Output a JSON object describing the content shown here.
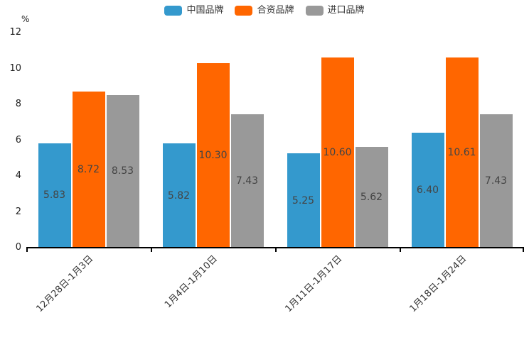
{
  "chart_data": {
    "type": "bar",
    "title": "",
    "unit_label": "%",
    "categories": [
      "12月28日-1月3日",
      "1月4日-1月10日",
      "1月11日-1月17日",
      "1月18日-1月24日"
    ],
    "series": [
      {
        "name": "中国品牌",
        "color": "#3499cd",
        "values": [
          5.83,
          5.82,
          5.25,
          6.4
        ]
      },
      {
        "name": "合资品牌",
        "color": "#ff6600",
        "values": [
          8.72,
          10.3,
          10.6,
          10.61
        ]
      },
      {
        "name": "进口品牌",
        "color": "#999999",
        "values": [
          8.53,
          7.43,
          5.62,
          7.43
        ]
      }
    ],
    "value_labels": [
      [
        "5.83",
        "8.72",
        "8.53"
      ],
      [
        "5.82",
        "10.30",
        "7.43"
      ],
      [
        "5.25",
        "10.60",
        "5.62"
      ],
      [
        "6.40",
        "10.61",
        "7.43"
      ]
    ],
    "ylim": [
      0,
      12
    ],
    "yticks": [
      0,
      2,
      4,
      6,
      8,
      10,
      12
    ],
    "xlabel": "",
    "ylabel": "%",
    "grid": false,
    "legend_position": "top-center",
    "axis_color": "#000000",
    "tick_text_color": "#222222",
    "value_label_color": "#444444"
  }
}
